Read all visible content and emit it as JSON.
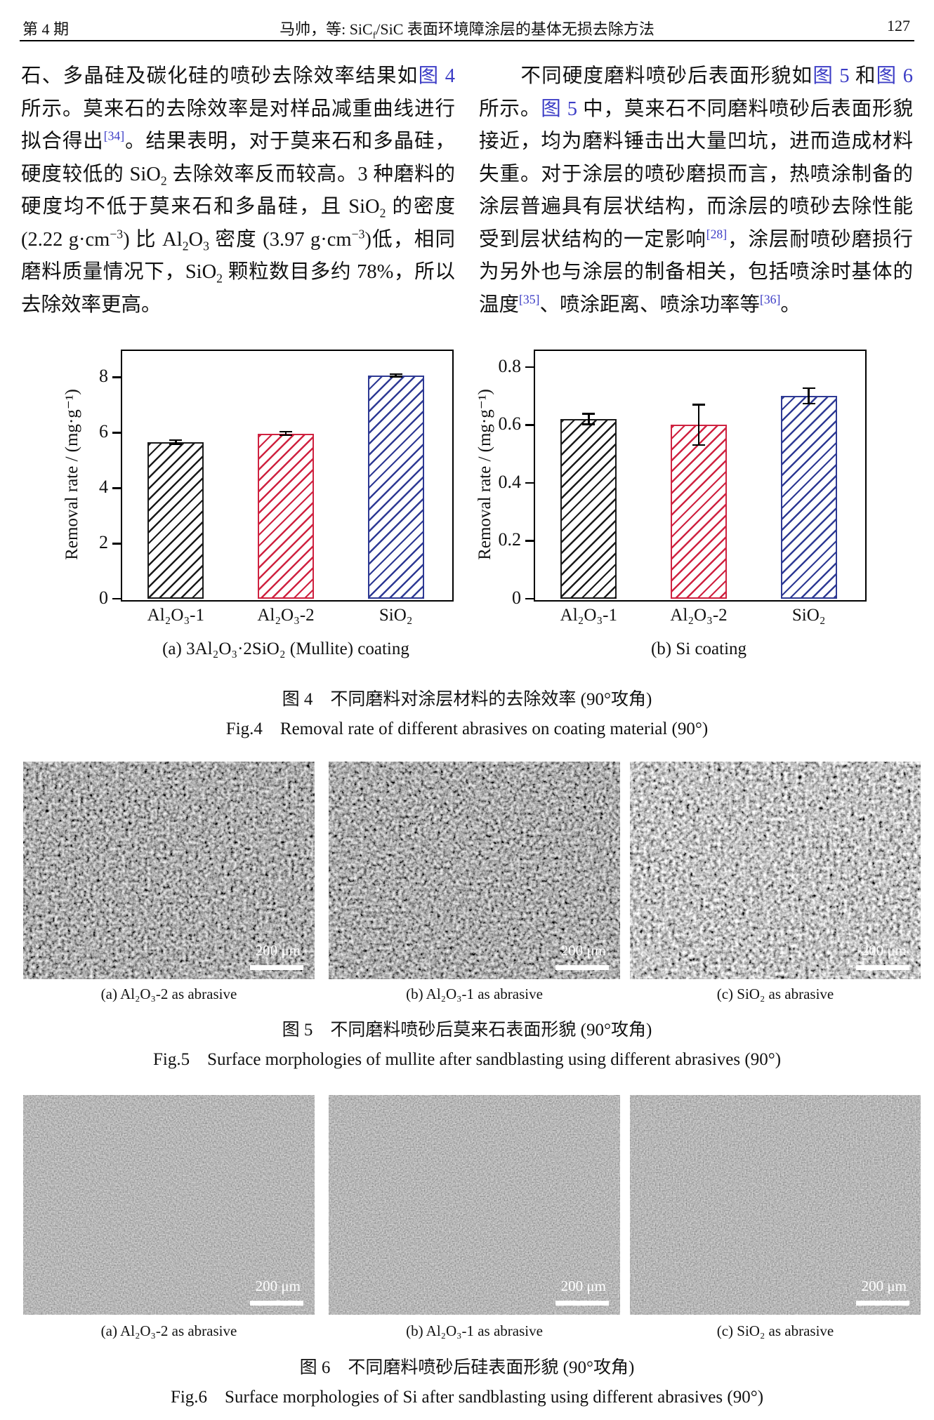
{
  "header": {
    "issue": "第 4 期",
    "running_title": [
      {
        "t": "马帅，等: SiC"
      },
      {
        "t": "f",
        "c": "sub"
      },
      {
        "t": "/SiC 表面环境障涂层的基体无损去除方法"
      }
    ],
    "page_number": "127"
  },
  "paragraphs": {
    "left": [
      {
        "t": "石、多晶硅及碳化硅的喷砂去除效率结果如"
      },
      {
        "t": "图 4",
        "c": "ref"
      },
      {
        "t": " 所示。莫来石的去除效率是对样品减重曲线进行拟合得出"
      },
      {
        "t": "[34]",
        "c": "sup ref"
      },
      {
        "t": "。结果表明，对于莫来石和多晶硅，硬度较低的 SiO"
      },
      {
        "t": "2",
        "c": "sub"
      },
      {
        "t": " 去除效率反而较高。3 种磨料的硬度均不低于莫来石和多晶硅，且 SiO"
      },
      {
        "t": "2",
        "c": "sub"
      },
      {
        "t": " 的密度 (2.22 g·cm"
      },
      {
        "t": "−3",
        "c": "sup"
      },
      {
        "t": ") 比 Al"
      },
      {
        "t": "2",
        "c": "sub"
      },
      {
        "t": "O"
      },
      {
        "t": "3",
        "c": "sub"
      },
      {
        "t": " 密度 (3.97 g·cm"
      },
      {
        "t": "−3",
        "c": "sup"
      },
      {
        "t": ")低，相同磨料质量情况下，SiO"
      },
      {
        "t": "2",
        "c": "sub"
      },
      {
        "t": " 颗粒数目多约 78%，所以去除效率更高。"
      }
    ],
    "right": [
      {
        "t": "　　不同硬度磨料喷砂后表面形貌如"
      },
      {
        "t": "图 5",
        "c": "ref"
      },
      {
        "t": " 和"
      },
      {
        "t": "图 6",
        "c": "ref"
      },
      {
        "t": " 所示。"
      },
      {
        "t": "图 5",
        "c": "ref"
      },
      {
        "t": " 中，莫来石不同磨料喷砂后表面形貌接近，均为磨料锤击出大量凹坑，进而造成材料失重。对于涂层的喷砂磨损而言，热喷涂制备的涂层普遍具有层状结构，而涂层的喷砂去除性能受到层状结构的一定影响"
      },
      {
        "t": "[28]",
        "c": "sup ref"
      },
      {
        "t": "，涂层耐喷砂磨损行为另外也与涂层的制备相关，包括喷涂时基体的温度"
      },
      {
        "t": "[35]",
        "c": "sup ref"
      },
      {
        "t": "、喷涂距离、喷涂功率等"
      },
      {
        "t": "[36]",
        "c": "sup ref"
      },
      {
        "t": "。"
      }
    ]
  },
  "chart_data": [
    {
      "type": "bar",
      "title": "(a) 3Al₂O₃·2SiO₂ (Mullite) coating",
      "categories": [
        "Al₂O₃-1",
        "Al₂O₃-2",
        "SiO₂"
      ],
      "values": [
        5.65,
        5.97,
        8.07
      ],
      "errors": [
        0.08,
        0.06,
        0.05
      ],
      "bar_colors": [
        "#1a1a1a",
        "#cf2240",
        "#2e3a94"
      ],
      "xlabel": "",
      "ylabel": "Removal rate / (mg·g⁻¹)",
      "yticks": [
        0,
        2,
        4,
        6,
        8
      ],
      "ylim": [
        0,
        9
      ],
      "grid": false,
      "legend": "none"
    },
    {
      "type": "bar",
      "title": "(b) Si coating",
      "categories": [
        "Al₂O₃-1",
        "Al₂O₃-2",
        "SiO₂"
      ],
      "values": [
        0.62,
        0.6,
        0.7
      ],
      "errors": [
        0.018,
        0.07,
        0.027
      ],
      "bar_colors": [
        "#1a1a1a",
        "#cf2240",
        "#2e3a94"
      ],
      "xlabel": "",
      "ylabel": "Removal rate / (mg·g⁻¹)",
      "yticks": [
        0,
        0.2,
        0.4,
        0.6,
        0.8
      ],
      "ylim": [
        0,
        0.86
      ],
      "grid": false,
      "legend": "none"
    }
  ],
  "figure4": {
    "caption_zh": "图 4　不同磨料对涂层材料的去除效率 (90°攻角)",
    "caption_en": "Fig.4　Removal rate of different abrasives on coating material (90°)"
  },
  "figure5": {
    "panels": [
      {
        "label": "(a) Al₂O₃-2 as abrasive",
        "scale": "200 μm"
      },
      {
        "label": "(b) Al₂O₃-1 as abrasive",
        "scale": "200 μm"
      },
      {
        "label": "(c) SiO₂ as abrasive",
        "scale": "200 μm"
      }
    ],
    "caption_zh": "图 5　不同磨料喷砂后莫来石表面形貌 (90°攻角)",
    "caption_en": "Fig.5　Surface morphologies of mullite after sandblasting using different abrasives (90°)"
  },
  "figure6": {
    "panels": [
      {
        "label": "(a) Al₂O₃-2 as abrasive",
        "scale": "200 μm"
      },
      {
        "label": "(b) Al₂O₃-1 as abrasive",
        "scale": "200 μm"
      },
      {
        "label": "(c) SiO₂ as abrasive",
        "scale": "200 μm"
      }
    ],
    "caption_zh": "图 6　不同磨料喷砂后硅表面形貌 (90°攻角)",
    "caption_en": "Fig.6　Surface morphologies of Si after sandblasting using different abrasives (90°)"
  }
}
